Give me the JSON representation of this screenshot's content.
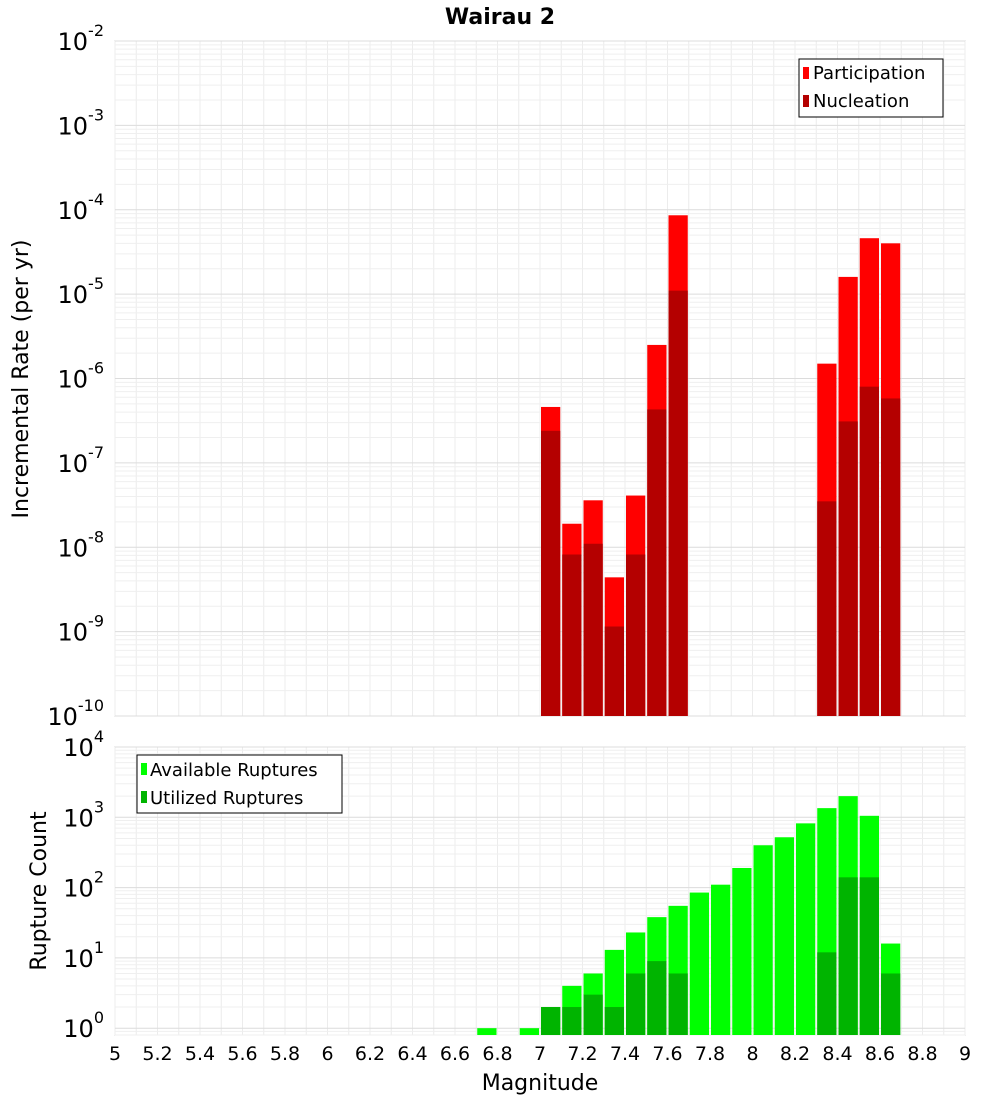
{
  "chart_data": [
    {
      "type": "bar",
      "title": "Wairau 2",
      "xlabel": "",
      "ylabel": "Incremental Rate (per yr)",
      "xlim": [
        5,
        9
      ],
      "ylim": [
        1e-10,
        0.01
      ],
      "yscale": "log",
      "ytick_labels": [
        {
          "exp": "-10",
          "value": 1e-10
        },
        {
          "exp": "-9",
          "value": 1e-09
        },
        {
          "exp": "-8",
          "value": 1e-08
        },
        {
          "exp": "-7",
          "value": 1e-07
        },
        {
          "exp": "-6",
          "value": 1e-06
        },
        {
          "exp": "-5",
          "value": 1e-05
        },
        {
          "exp": "-4",
          "value": 0.0001
        },
        {
          "exp": "-3",
          "value": 0.001
        },
        {
          "exp": "-2",
          "value": 0.01
        }
      ],
      "grid": true,
      "legend_position": "top-right",
      "series": [
        {
          "name": "Participation",
          "color": "#ff0000",
          "x": [
            7.05,
            7.15,
            7.25,
            7.35,
            7.45,
            7.55,
            7.65,
            8.35,
            8.45,
            8.55,
            8.65
          ],
          "values": [
            4.6e-07,
            1.9e-08,
            3.6e-08,
            4.4e-09,
            4.1e-08,
            2.5e-06,
            8.6e-05,
            1.5e-06,
            1.6e-05,
            4.6e-05,
            4e-05
          ]
        },
        {
          "name": "Nucleation",
          "color": "#b40000",
          "x": [
            7.05,
            7.15,
            7.25,
            7.35,
            7.45,
            7.55,
            7.65,
            8.35,
            8.45,
            8.55,
            8.65
          ],
          "values": [
            2.4e-07,
            8.2e-09,
            1.1e-08,
            1.15e-09,
            8.2e-09,
            4.3e-07,
            1.1e-05,
            3.5e-08,
            3.1e-07,
            8e-07,
            5.8e-07
          ]
        }
      ]
    },
    {
      "type": "bar",
      "title": "",
      "xlabel": "Magnitude",
      "ylabel": "Rupture Count",
      "xlim": [
        5,
        9
      ],
      "ylim": [
        0.8,
        10000
      ],
      "yscale": "log",
      "ytick_labels": [
        {
          "exp": "0",
          "value": 1
        },
        {
          "exp": "1",
          "value": 10
        },
        {
          "exp": "2",
          "value": 100
        },
        {
          "exp": "3",
          "value": 1000
        },
        {
          "exp": "4",
          "value": 10000
        }
      ],
      "xtick_labels": [
        "5",
        "5.2",
        "5.4",
        "5.6",
        "5.8",
        "6",
        "6.2",
        "6.4",
        "6.6",
        "6.8",
        "7",
        "7.2",
        "7.4",
        "7.6",
        "7.8",
        "8",
        "8.2",
        "8.4",
        "8.6",
        "8.8",
        "9"
      ],
      "grid": true,
      "legend_position": "top-left",
      "series": [
        {
          "name": "Available Ruptures",
          "color": "#00ff00",
          "x": [
            6.75,
            6.95,
            7.05,
            7.15,
            7.25,
            7.35,
            7.45,
            7.55,
            7.65,
            7.75,
            7.85,
            7.95,
            8.05,
            8.15,
            8.25,
            8.35,
            8.45,
            8.55,
            8.65
          ],
          "values": [
            1,
            1,
            2,
            4,
            6,
            13,
            23,
            38,
            55,
            85,
            110,
            190,
            400,
            520,
            820,
            1350,
            2000,
            1050,
            16
          ]
        },
        {
          "name": "Utilized Ruptures",
          "color": "#00b400",
          "x": [
            7.05,
            7.15,
            7.25,
            7.35,
            7.45,
            7.55,
            7.65,
            8.35,
            8.45,
            8.55,
            8.65
          ],
          "values": [
            2,
            2,
            3,
            2,
            6,
            9,
            6,
            12,
            140,
            140,
            6
          ]
        }
      ]
    }
  ]
}
